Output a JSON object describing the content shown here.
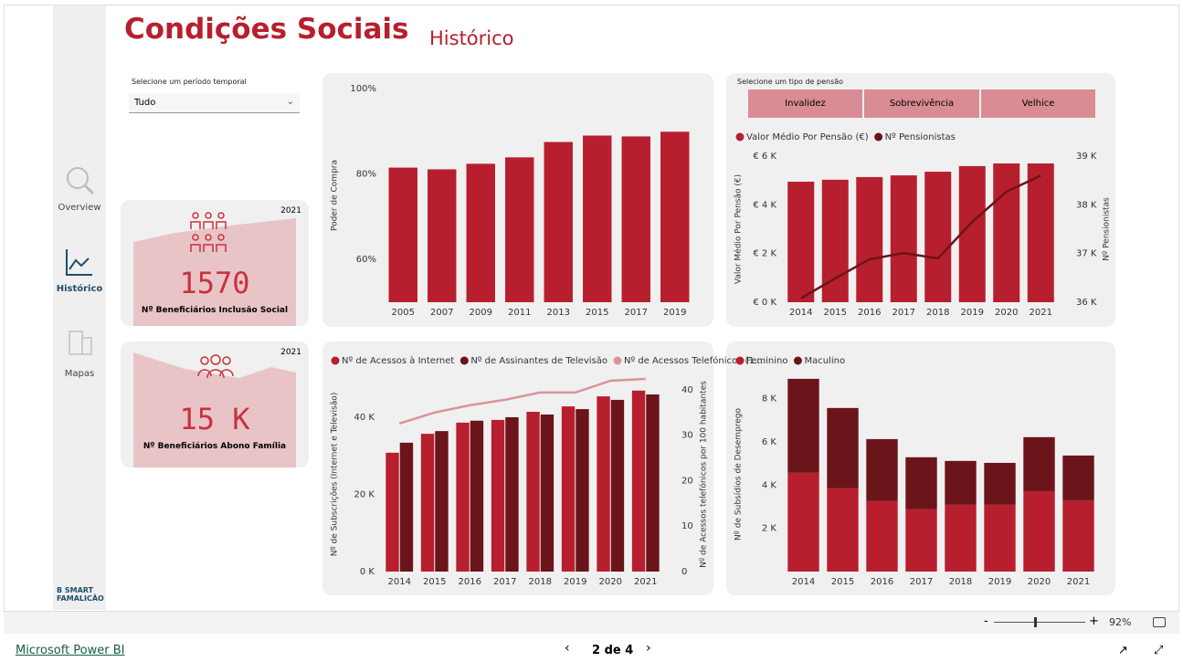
{
  "header": {
    "title": "Condições Sociais",
    "subtitle": "Histórico"
  },
  "nav": [
    "Overview",
    "Histórico",
    "Mapas"
  ],
  "logo": {
    "line1": "B SMART",
    "line2": "FAMALICÃO"
  },
  "period_slicer": {
    "label": "Selecione um período temporal",
    "value": "Tudo"
  },
  "kpis": [
    {
      "year": "2021",
      "value": 1570,
      "label": "Nº Beneficiários Inclusão Social"
    },
    {
      "year": "2021",
      "value": "15 K",
      "label": "Nº Beneficiários Abono Família"
    }
  ],
  "pension_slicer": {
    "label": "Selecione um tipo de pensão",
    "options": [
      "Invalidez",
      "Sobrevivência",
      "Velhice"
    ]
  },
  "chart_data": [
    {
      "type": "bar",
      "y_label": "Poder de Compra",
      "categories": [
        "2005",
        "2007",
        "2009",
        "2011",
        "2013",
        "2015",
        "2017",
        "2019"
      ],
      "values": [
        81.5,
        81.1,
        82.4,
        83.9,
        87.5,
        89.0,
        88.8,
        89.9
      ],
      "color": "#b71f2e",
      "ylim": [
        50,
        100
      ],
      "yticks": [
        {
          "value": 60,
          "label": "60%"
        },
        {
          "value": 80,
          "label": "80%"
        },
        {
          "value": 100,
          "label": "100%"
        }
      ]
    },
    {
      "type": "combo",
      "y_label": "Valor Médio Por Pensão (€)",
      "y2_label": "Nº Pensionistas",
      "categories": [
        "2014",
        "2015",
        "2016",
        "2017",
        "2018",
        "2019",
        "2020",
        "2021"
      ],
      "series": [
        {
          "name": "Valor Médio Por Pensão (€)",
          "color": "#b71f2e",
          "values": [
            4950,
            5030,
            5140,
            5210,
            5360,
            5590,
            5700,
            5700
          ]
        },
        {
          "name": "Nº Pensionistas",
          "color": "#6b1419",
          "axis": "y2",
          "values": [
            36080,
            36490,
            36880,
            37010,
            36900,
            37650,
            38270,
            38600
          ]
        }
      ],
      "ylim": [
        0,
        6000
      ],
      "yticks": [
        {
          "value": 0,
          "label": "€ 0 K"
        },
        {
          "value": 2000,
          "label": "€ 2 K"
        },
        {
          "value": 4000,
          "label": "€ 4 K"
        },
        {
          "value": 6000,
          "label": "€ 6 K"
        }
      ],
      "y2lim": [
        36000,
        39000
      ],
      "y2ticks": [
        {
          "value": 36000,
          "label": "36 K"
        },
        {
          "value": 37000,
          "label": "37 K"
        },
        {
          "value": 38000,
          "label": "38 K"
        },
        {
          "value": 39000,
          "label": "39 K"
        }
      ]
    },
    {
      "type": "combo",
      "y_label": "Nº de Subscrições (Internet e Televisão)",
      "y2_label": "Nº de Acessos telefónicos por 100 habitantes",
      "categories": [
        "2014",
        "2015",
        "2016",
        "2017",
        "2018",
        "2019",
        "2020",
        "2021"
      ],
      "series": [
        {
          "name": "Nº de Acessos à Internet",
          "color": "#b71f2e",
          "values": [
            30800,
            35700,
            38600,
            39300,
            41400,
            42800,
            45400,
            46900
          ]
        },
        {
          "name": "Nº de Assinantes de Televisão",
          "color": "#6b1419",
          "values": [
            33400,
            36400,
            39100,
            40000,
            40700,
            42100,
            44500,
            45900
          ]
        },
        {
          "name": "Nº de Acessos Telefónicos (1...",
          "color": "#dc9399",
          "axis": "y2",
          "values": [
            32.6,
            35.0,
            36.6,
            37.8,
            39.4,
            39.4,
            42.0,
            42.4
          ]
        }
      ],
      "ylim": [
        0,
        50400
      ],
      "yticks": [
        {
          "value": 0,
          "label": "0 K"
        },
        {
          "value": 20000,
          "label": "20 K"
        },
        {
          "value": 40000,
          "label": "40 K"
        }
      ],
      "y2lim": [
        0,
        42.8
      ],
      "y2ticks": [
        0,
        10,
        20,
        30,
        40
      ]
    },
    {
      "type": "stacked_bar",
      "y_label": "Nº de Subsídios de Desemprego",
      "categories": [
        "2014",
        "2015",
        "2016",
        "2017",
        "2018",
        "2019",
        "2020",
        "2021"
      ],
      "series": [
        {
          "name": "Feminino",
          "color": "#b71f2e",
          "values": [
            4570,
            3850,
            3260,
            2880,
            3090,
            3090,
            3720,
            3300
          ]
        },
        {
          "name": "Maculino",
          "color": "#6b1419",
          "values": [
            4350,
            3720,
            2870,
            2410,
            2030,
            1940,
            2500,
            2070
          ]
        }
      ],
      "ylim": [
        0,
        9000
      ],
      "yticks": [
        {
          "value": 2000,
          "label": "2 K"
        },
        {
          "value": 4000,
          "label": "4 K"
        },
        {
          "value": 6000,
          "label": "6 K"
        },
        {
          "value": 8000,
          "label": "8 K"
        }
      ]
    }
  ],
  "footer": {
    "brand": "Microsoft Power BI",
    "page": "2 de 4",
    "zoom": "92%",
    "minus": "-",
    "plus": "+"
  }
}
